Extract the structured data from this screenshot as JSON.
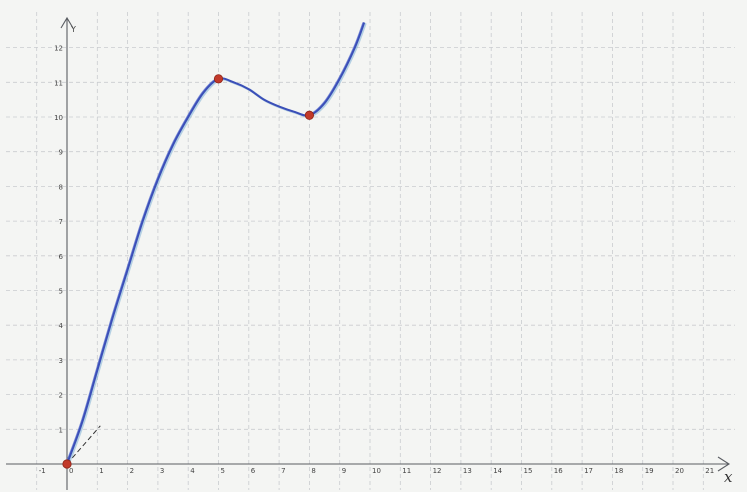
{
  "chart_data": {
    "type": "line",
    "title": "",
    "xlabel": "x",
    "ylabel": "Y",
    "xlim": [
      -1.5,
      21.5
    ],
    "ylim": [
      -0.6,
      12.6
    ],
    "grid": true,
    "x_ticks": [
      "-1",
      "0",
      "1",
      "2",
      "3",
      "4",
      "5",
      "6",
      "7",
      "8",
      "9",
      "10",
      "11",
      "12",
      "13",
      "14",
      "15",
      "16",
      "17",
      "18",
      "19",
      "20",
      "21"
    ],
    "y_ticks": [
      "1",
      "2",
      "3",
      "4",
      "5",
      "6",
      "7",
      "8",
      "9",
      "10",
      "11",
      "12"
    ],
    "series": [
      {
        "color": "#3b4fb8",
        "points": [
          [
            0,
            0
          ],
          [
            0.5,
            1.2
          ],
          [
            1,
            2.7
          ],
          [
            1.5,
            4.2
          ],
          [
            2,
            5.6
          ],
          [
            2.5,
            7.0
          ],
          [
            3,
            8.2
          ],
          [
            3.5,
            9.2
          ],
          [
            4,
            10.0
          ],
          [
            4.5,
            10.7
          ],
          [
            5,
            11.1
          ],
          [
            5.5,
            11.0
          ],
          [
            6,
            10.8
          ],
          [
            6.5,
            10.5
          ],
          [
            7,
            10.3
          ],
          [
            7.5,
            10.15
          ],
          [
            8,
            10.05
          ],
          [
            8.5,
            10.4
          ],
          [
            9,
            11.1
          ],
          [
            9.5,
            12.0
          ],
          [
            9.8,
            12.7
          ]
        ]
      }
    ],
    "markers": [
      {
        "x": 0,
        "y": 0
      },
      {
        "x": 5,
        "y": 11.1
      },
      {
        "x": 8,
        "y": 10.05
      }
    ],
    "tangent": {
      "x1": 0,
      "y1": 0,
      "x2": 1.1,
      "y2": 1.1
    },
    "colors": {
      "curve": "#3b4fb8",
      "marker": "#c23a2a",
      "grid": "#c9cccf",
      "axis": "#5a5d62"
    }
  }
}
